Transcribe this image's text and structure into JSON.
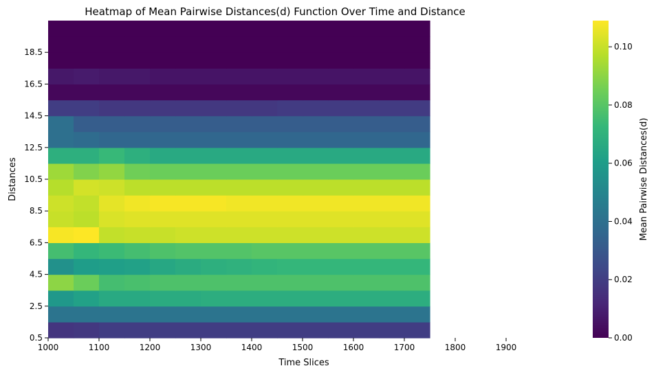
{
  "chart_data": {
    "type": "heatmap",
    "title": "Heatmap of Mean Pairwise Distances(d) Function Over Time and Distance",
    "xlabel": "Time Slices",
    "ylabel": "Distances",
    "colorbar_label": "Mean Pairwise Distances(d)",
    "colormap": "viridis",
    "x_ticks": [
      1000,
      1100,
      1200,
      1300,
      1400,
      1500,
      1600,
      1700,
      1800,
      1900
    ],
    "y_ticks": [
      0.5,
      2.5,
      4.5,
      6.5,
      8.5,
      10.5,
      12.5,
      14.5,
      16.5,
      18.5
    ],
    "colorbar_ticks": [
      "0.00",
      "0.02",
      "0.04",
      "0.06",
      "0.08",
      "0.10"
    ],
    "vmin": 0,
    "vmax": 0.109,
    "x_range": [
      1000,
      1900
    ],
    "y_range": [
      0.5,
      20.5
    ],
    "time_slices": [
      1000,
      1050,
      1100,
      1150,
      1200,
      1250,
      1300,
      1350,
      1400,
      1450,
      1500,
      1550,
      1600,
      1650,
      1700
    ],
    "distances": [
      0.5,
      1.5,
      2.5,
      3.5,
      4.5,
      5.5,
      6.5,
      7.5,
      8.5,
      9.5,
      10.5,
      11.5,
      12.5,
      13.5,
      14.5,
      15.5,
      16.5,
      17.5,
      18.5,
      19.5
    ],
    "values": [
      [
        0.017,
        0.018,
        0.02,
        0.02,
        0.02,
        0.02,
        0.02,
        0.02,
        0.02,
        0.02,
        0.02,
        0.02,
        0.02,
        0.02,
        0.02
      ],
      [
        0.042,
        0.042,
        0.042,
        0.042,
        0.042,
        0.042,
        0.042,
        0.042,
        0.042,
        0.042,
        0.042,
        0.042,
        0.042,
        0.042,
        0.042
      ],
      [
        0.058,
        0.062,
        0.066,
        0.066,
        0.067,
        0.067,
        0.068,
        0.068,
        0.068,
        0.068,
        0.068,
        0.068,
        0.068,
        0.068,
        0.068
      ],
      [
        0.09,
        0.084,
        0.076,
        0.077,
        0.078,
        0.078,
        0.078,
        0.078,
        0.078,
        0.078,
        0.078,
        0.078,
        0.078,
        0.078,
        0.078
      ],
      [
        0.055,
        0.06,
        0.061,
        0.062,
        0.065,
        0.067,
        0.069,
        0.07,
        0.071,
        0.072,
        0.072,
        0.072,
        0.072,
        0.072,
        0.072
      ],
      [
        0.076,
        0.072,
        0.074,
        0.076,
        0.078,
        0.079,
        0.079,
        0.079,
        0.08,
        0.08,
        0.08,
        0.08,
        0.08,
        0.08,
        0.08
      ],
      [
        0.108,
        0.109,
        0.099,
        0.1,
        0.1,
        0.101,
        0.101,
        0.101,
        0.101,
        0.101,
        0.101,
        0.101,
        0.101,
        0.101,
        0.101
      ],
      [
        0.1,
        0.098,
        0.103,
        0.104,
        0.104,
        0.104,
        0.104,
        0.104,
        0.104,
        0.104,
        0.104,
        0.104,
        0.104,
        0.104,
        0.104
      ],
      [
        0.101,
        0.099,
        0.105,
        0.107,
        0.108,
        0.108,
        0.108,
        0.107,
        0.107,
        0.107,
        0.107,
        0.107,
        0.107,
        0.107,
        0.107
      ],
      [
        0.097,
        0.102,
        0.101,
        0.098,
        0.098,
        0.098,
        0.098,
        0.098,
        0.098,
        0.098,
        0.098,
        0.098,
        0.098,
        0.098,
        0.098
      ],
      [
        0.093,
        0.088,
        0.091,
        0.085,
        0.084,
        0.084,
        0.084,
        0.084,
        0.084,
        0.084,
        0.084,
        0.084,
        0.084,
        0.084,
        0.084
      ],
      [
        0.069,
        0.069,
        0.073,
        0.069,
        0.066,
        0.066,
        0.066,
        0.066,
        0.066,
        0.066,
        0.066,
        0.066,
        0.066,
        0.066,
        0.066
      ],
      [
        0.04,
        0.038,
        0.036,
        0.036,
        0.036,
        0.036,
        0.036,
        0.036,
        0.036,
        0.036,
        0.036,
        0.036,
        0.036,
        0.036,
        0.036
      ],
      [
        0.04,
        0.032,
        0.032,
        0.032,
        0.032,
        0.032,
        0.032,
        0.032,
        0.032,
        0.032,
        0.032,
        0.032,
        0.032,
        0.032,
        0.032
      ],
      [
        0.02,
        0.02,
        0.018,
        0.018,
        0.018,
        0.018,
        0.018,
        0.018,
        0.018,
        0.019,
        0.019,
        0.019,
        0.019,
        0.019,
        0.019
      ],
      [
        0.002,
        0.002,
        0.002,
        0.002,
        0.002,
        0.002,
        0.002,
        0.002,
        0.002,
        0.002,
        0.002,
        0.002,
        0.002,
        0.002,
        0.002
      ],
      [
        0.007,
        0.008,
        0.007,
        0.007,
        0.006,
        0.006,
        0.006,
        0.006,
        0.006,
        0.006,
        0.006,
        0.006,
        0.006,
        0.006,
        0.006
      ],
      [
        0.0,
        0.0,
        0.0,
        0.0,
        0.0,
        0.0,
        0.0,
        0.0,
        0.0,
        0.0,
        0.0,
        0.0,
        0.0,
        0.0,
        0.0
      ],
      [
        0.0,
        0.0,
        0.0,
        0.0,
        0.0,
        0.0,
        0.0,
        0.0,
        0.0,
        0.0,
        0.0,
        0.0,
        0.0,
        0.0,
        0.0
      ],
      [
        0.0,
        0.0,
        0.0,
        0.0,
        0.0,
        0.0,
        0.0,
        0.0,
        0.0,
        0.0,
        0.0,
        0.0,
        0.0,
        0.0,
        0.0
      ]
    ]
  }
}
